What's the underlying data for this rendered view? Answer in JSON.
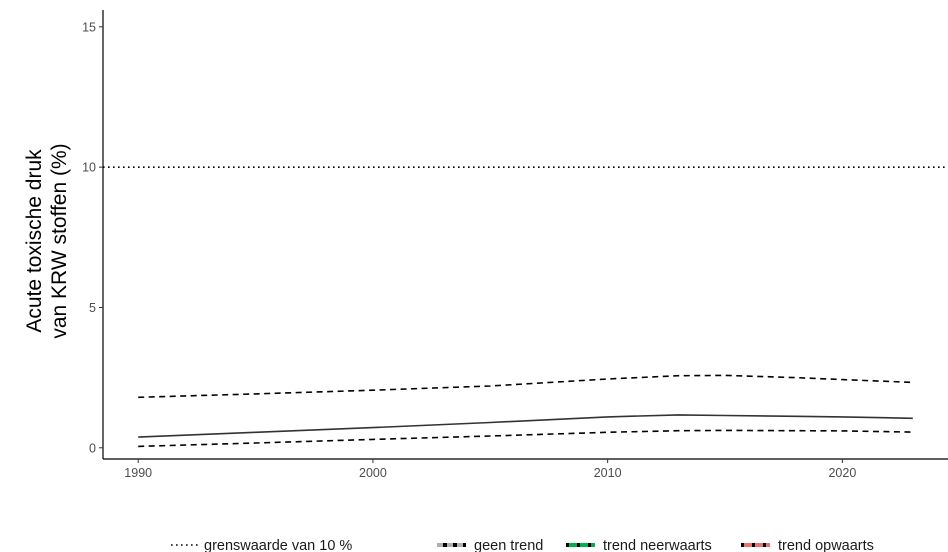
{
  "chart_data": {
    "type": "line",
    "title": "",
    "xlabel": "",
    "ylabel_lines": [
      "Acute toxische druk",
      "van KRW stoffen (%)"
    ],
    "xlim": [
      1988.5,
      2024.5
    ],
    "ylim": [
      -0.4,
      15.6
    ],
    "x_ticks": [
      1990,
      2000,
      2010,
      2020
    ],
    "y_ticks": [
      0,
      5,
      10,
      15
    ],
    "grid": false,
    "threshold": {
      "value": 10,
      "label": "grenswaarde van 10 %"
    },
    "x": [
      1990,
      1995,
      2000,
      2005,
      2010,
      2013,
      2015,
      2018,
      2020,
      2023
    ],
    "series": [
      {
        "values": [
          0.38,
          0.55,
          0.72,
          0.9,
          1.1,
          1.17,
          1.15,
          1.12,
          1.1,
          1.05
        ],
        "style": "solid",
        "color": "#333333"
      },
      {
        "values": [
          1.8,
          1.92,
          2.05,
          2.2,
          2.45,
          2.57,
          2.58,
          2.5,
          2.43,
          2.33
        ],
        "style": "dashed",
        "color": "#000000"
      },
      {
        "values": [
          0.05,
          0.17,
          0.3,
          0.42,
          0.55,
          0.61,
          0.62,
          0.61,
          0.6,
          0.56
        ],
        "style": "dashed",
        "color": "#000000"
      }
    ],
    "legend": {
      "placement": "bottom",
      "threshold_label": "grenswaarde van 10 %",
      "items": [
        {
          "label": "geen trend",
          "color": "#000000",
          "dash_color": "#b0b0b0"
        },
        {
          "label": "trend neerwaarts",
          "color": "#00b050",
          "dash_color": "#000000"
        },
        {
          "label": "trend opwaarts",
          "color": "#e8736a",
          "dash_color": "#000000"
        }
      ]
    }
  }
}
